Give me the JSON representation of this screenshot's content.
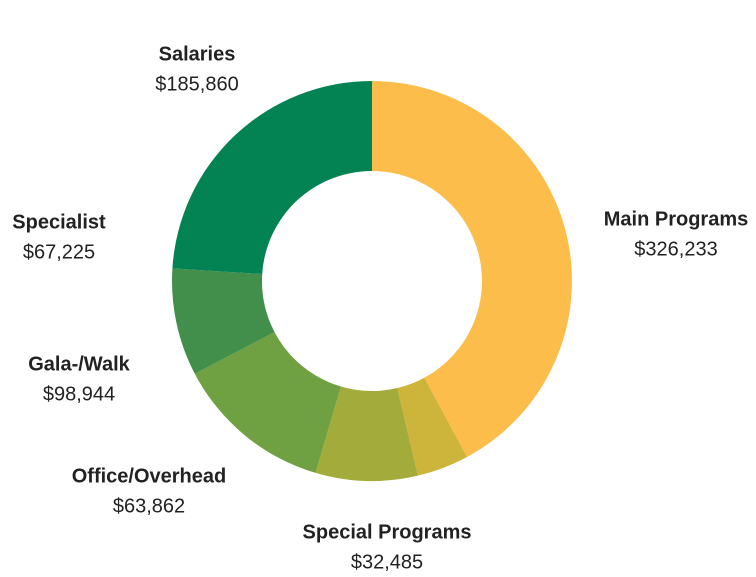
{
  "chart_data": {
    "type": "donut",
    "categories": [
      "Main Programs",
      "Special Programs",
      "Office/Overhead",
      "Gala-/Walk",
      "Specialist",
      "Salaries"
    ],
    "values": [
      326233,
      32485,
      63862,
      98944,
      67225,
      185860
    ],
    "value_labels": [
      "$326,233",
      "$32,485",
      "$63,862",
      "$98,944",
      "$67,225",
      "$185,860"
    ],
    "colors": [
      "#fdbd4a",
      "#cdb43a",
      "#a3ac3a",
      "#6fa041",
      "#418f4b",
      "#038253"
    ]
  }
}
